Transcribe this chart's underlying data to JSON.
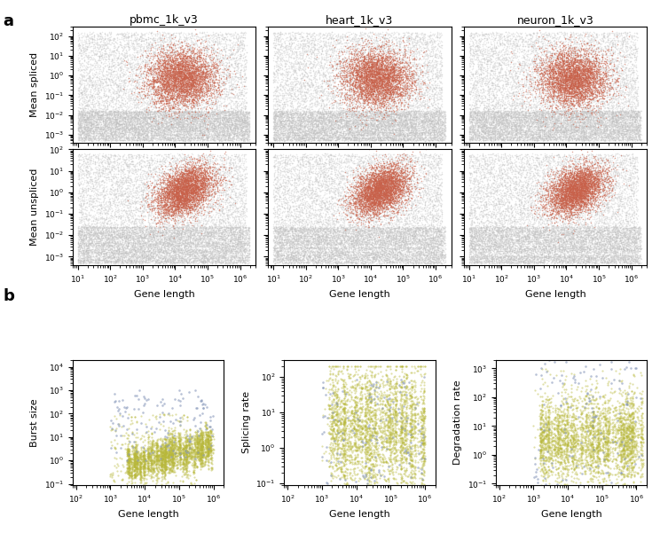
{
  "panel_a_titles": [
    "pbmc_1k_v3",
    "heart_1k_v3",
    "neuron_1k_v3"
  ],
  "panel_a_row_labels": [
    "Mean spliced",
    "Mean unspliced"
  ],
  "panel_b_ylabels": [
    "Burst size",
    "Splicing rate",
    "Degradation rate"
  ],
  "xlabel": "Gene length",
  "panel_label_a": "a",
  "panel_label_b": "b",
  "scatter_color_orange": "#c8614a",
  "scatter_color_gray": "#c0c0c0",
  "scatter_color_olive": "#b8b83a",
  "scatter_color_blue_gray": "#8899bb",
  "point_size_a": 1.2,
  "point_size_b": 2.5,
  "alpha_orange": 0.55,
  "alpha_gray": 0.35,
  "alpha_olive": 0.45,
  "alpha_bluegray": 0.6,
  "seed": 42,
  "n_gray_a": 8000,
  "n_orange": 4000,
  "n_stripe": 5000,
  "n_olive_b": 3000,
  "n_gray_b": 150,
  "figsize": [
    7.44,
    6.01
  ],
  "dpi": 100
}
